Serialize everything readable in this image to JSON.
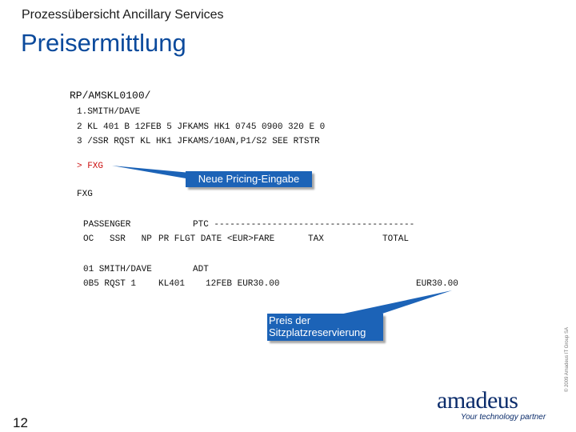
{
  "header": {
    "supertitle": "Prozessübersicht Ancillary Services",
    "title": "Preisermittlung"
  },
  "terminal": {
    "lines": [
      "RP/AMSKL0100/",
      "1.SMITH/DAVE",
      "2 KL 401 B 12FEB 5 JFKAMS HK1 0745 0900 320 E 0",
      "3 /SSR RQST KL HK1 JFKAMS/10AN,P1/S2 SEE RTSTR"
    ],
    "prompt": "> FXG",
    "echo": "FXG",
    "table_header_1_left": "PASSENGER",
    "table_header_1_right": "PTC --------------------------------------",
    "table_header_2_left": "OC   SSR   NP",
    "table_header_2_mid": "PR FLGT DATE <EUR>FARE",
    "table_header_2_tax": "TAX",
    "table_header_2_total": "TOTAL",
    "row_1_left": "01 SMITH/DAVE",
    "row_1_ptc": "ADT",
    "row_2_left": "0B5 RQST 1",
    "row_2_flight": "KL401",
    "row_2_date_fare": "12FEB EUR30.00",
    "row_2_total": "EUR30.00"
  },
  "callouts": {
    "pricing_entry": "Neue Pricing-Eingabe",
    "seat_price": "Preis der\nSitzplatzreservierung"
  },
  "footer": {
    "page_number": "12",
    "copyright": "© 2009 Amadeus IT Group SA",
    "logo": "amadeus",
    "tagline": "Your technology partner"
  },
  "colors": {
    "title_blue": "#0b4a9c",
    "callout_blue": "#1c63b7",
    "prompt_red": "#cc1111"
  }
}
